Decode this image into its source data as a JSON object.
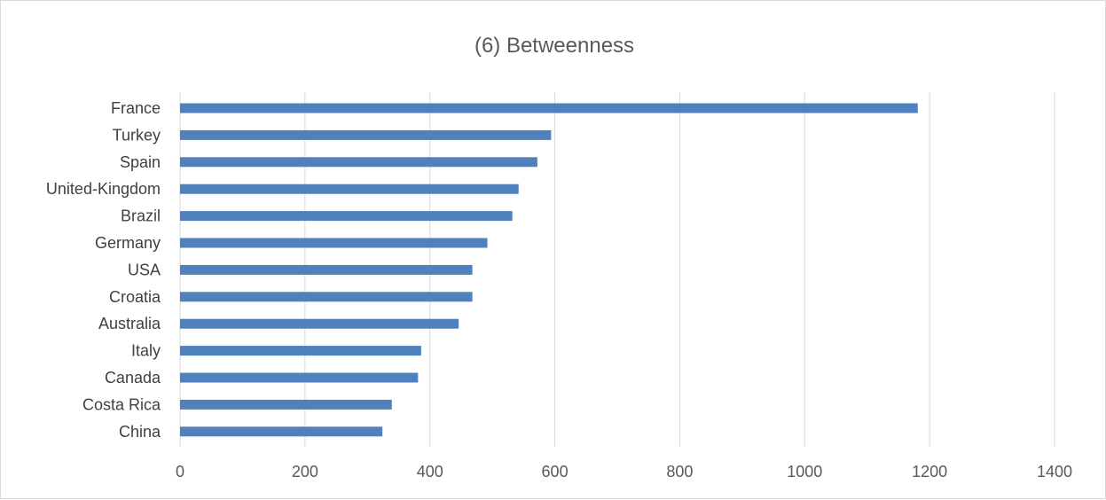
{
  "chart_data": {
    "type": "bar",
    "orientation": "horizontal",
    "title": "(6)  Betweenness",
    "xlabel": "",
    "ylabel": "",
    "categories": [
      "France",
      "Turkey",
      "Spain",
      "United-Kingdom",
      "Brazil",
      "Germany",
      "USA",
      "Croatia",
      "Australia",
      "Italy",
      "Canada",
      "Costa Rica",
      "China"
    ],
    "values": [
      1181,
      594,
      572,
      542,
      532,
      492,
      468,
      468,
      446,
      386,
      381,
      339,
      324
    ],
    "xlim": [
      0,
      1400
    ],
    "xticks": [
      "0",
      "200",
      "400",
      "600",
      "800",
      "1000",
      "1200",
      "1400"
    ],
    "bar_color": "#4f81bd",
    "grid": true,
    "legend": "none"
  }
}
